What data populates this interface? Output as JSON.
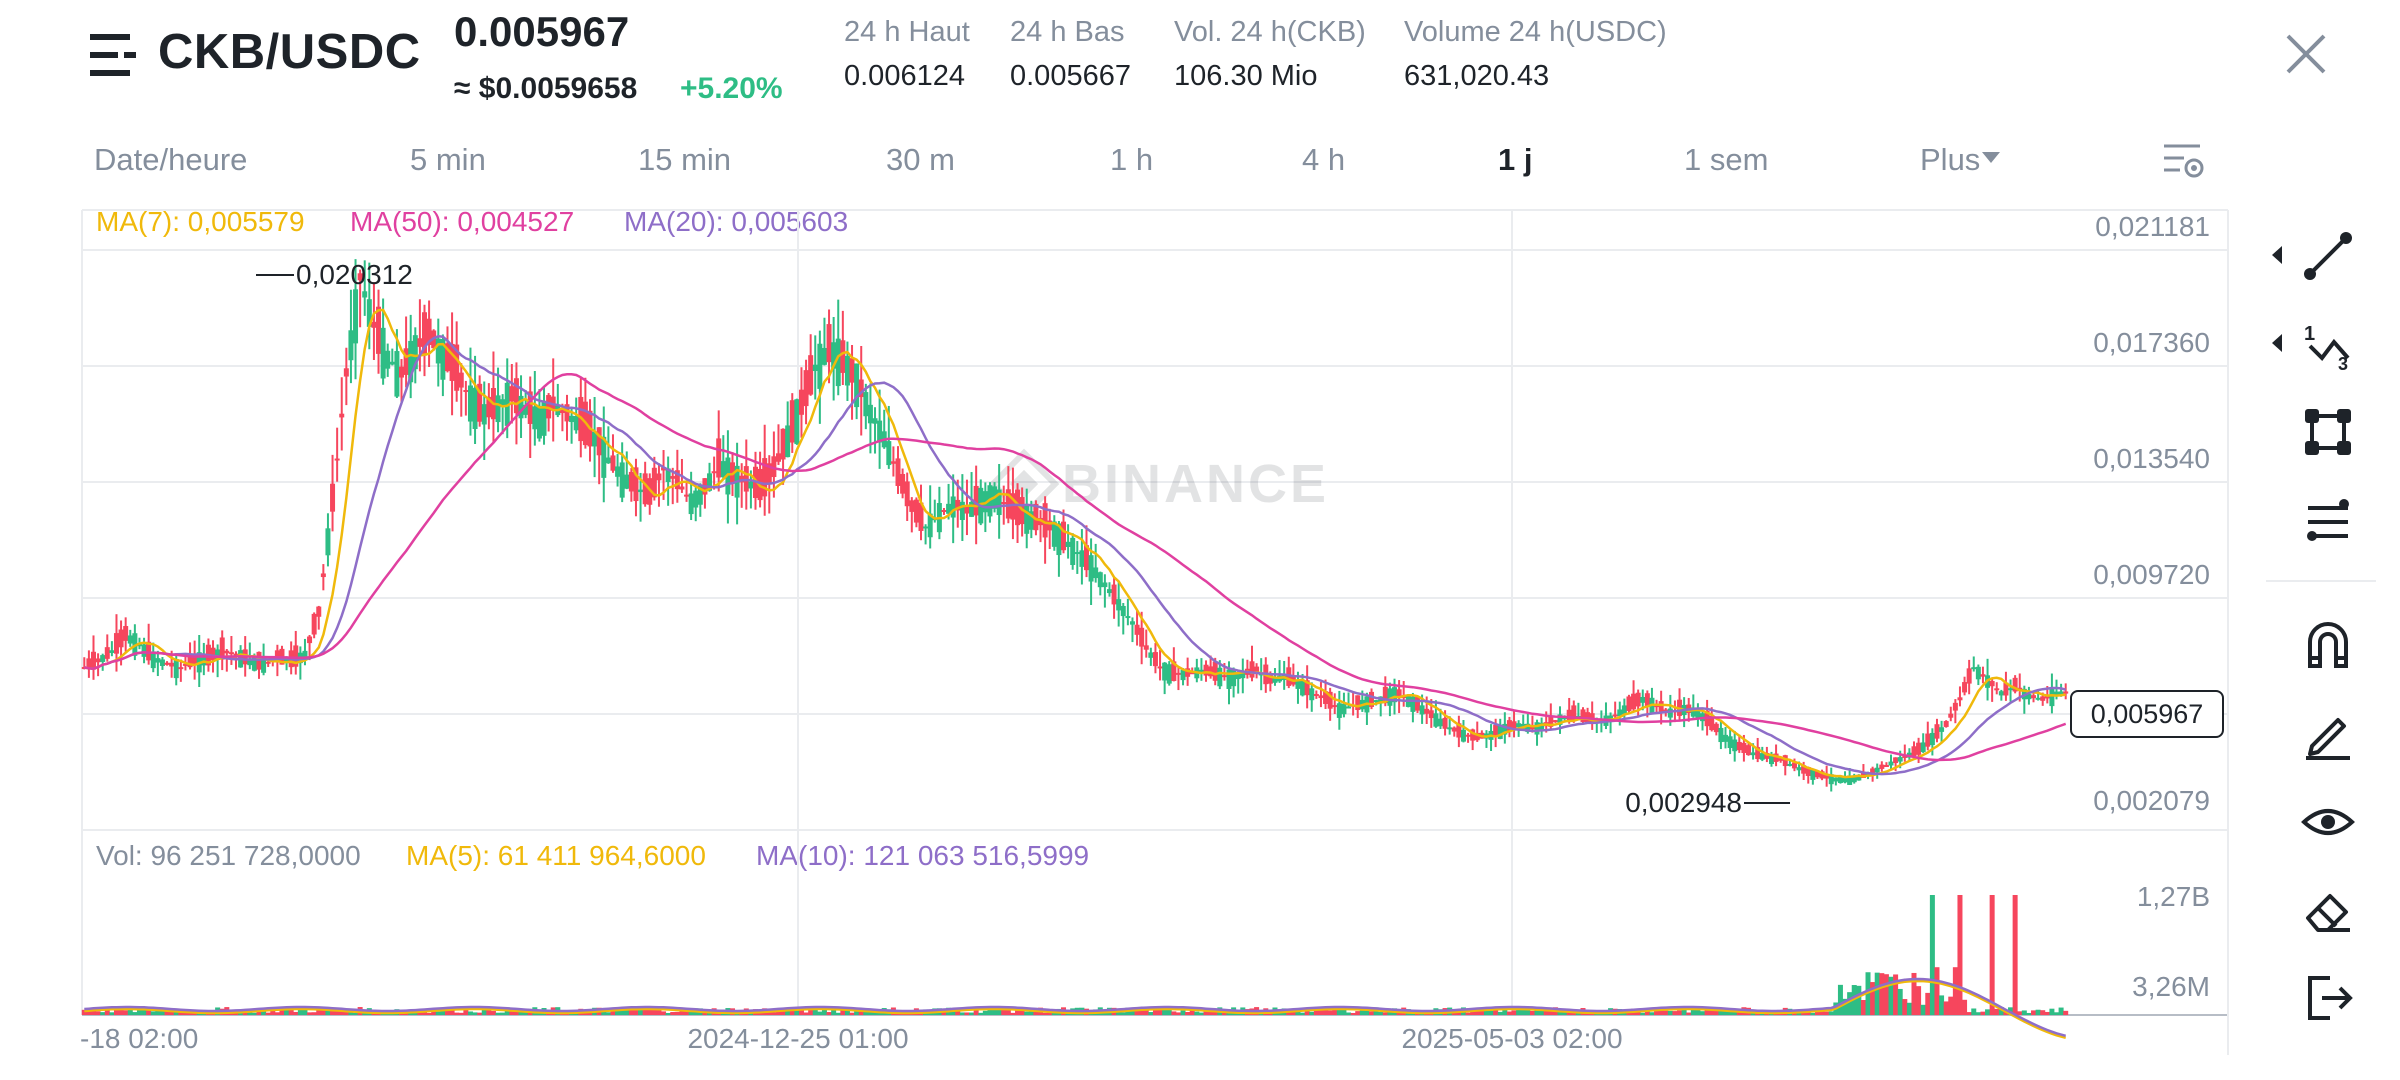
{
  "header": {
    "pair": "CKB/USDC",
    "price": "0.005967",
    "usd_price": "≈ $0.0059658",
    "change": "+5.20%",
    "stats": [
      {
        "label": "24 h Haut",
        "value": "0.006124"
      },
      {
        "label": "24 h Bas",
        "value": "0.005667"
      },
      {
        "label": "Vol. 24 h(CKB)",
        "value": "106.30 Mio"
      },
      {
        "label": "Volume 24 h(USDC)",
        "value": "631,020.43"
      }
    ]
  },
  "tabs": [
    "Date/heure",
    "5 min",
    "15 min",
    "30 m",
    "1 h",
    "4 h",
    "1 j",
    "1 sem",
    "Plus"
  ],
  "active_tab": "1 j",
  "price_legend": [
    {
      "label": "MA(7): 0,005579",
      "color": "#f0b90b"
    },
    {
      "label": "MA(50): 0,004527",
      "color": "#e040a0"
    },
    {
      "label": "MA(20): 0,005603",
      "color": "#8e6ec8"
    }
  ],
  "volume_legend": [
    {
      "label": "Vol: 96 251 728,0000",
      "color": "#848e9c"
    },
    {
      "label": "MA(5): 61 411 964,6000",
      "color": "#f0b90b"
    },
    {
      "label": "MA(10): 121 063 516,5999",
      "color": "#8e6ec8"
    }
  ],
  "watermark": "BINANCE",
  "current_price_tag": "0,005967",
  "colors": {
    "up": "#2ebd85",
    "down": "#f6465d",
    "ma7": "#f0b90b",
    "ma20": "#8e6ec8",
    "ma50": "#e040a0",
    "grid": "#eaecef",
    "axis_text": "#848e9c"
  },
  "chart_data": {
    "type": "candlestick",
    "price_axis_ticks": [
      "0,021181",
      "0,017360",
      "0,013540",
      "0,009720",
      "0,002079"
    ],
    "volume_axis_ticks": [
      "1,27B",
      "3,26M"
    ],
    "time_axis_ticks": [
      "-18 02:00",
      "2024-12-25 01:00",
      "2025-05-03 02:00"
    ],
    "annotations": {
      "high": "0,020312",
      "low": "0,002948"
    },
    "ylim": [
      0.002079,
      0.021181
    ],
    "close_series": [
      0.0068,
      0.007,
      0.0073,
      0.0078,
      0.0075,
      0.0071,
      0.0069,
      0.0068,
      0.007,
      0.0071,
      0.0073,
      0.0072,
      0.007,
      0.0069,
      0.0071,
      0.007,
      0.0072,
      0.0085,
      0.012,
      0.016,
      0.019,
      0.0175,
      0.0165,
      0.016,
      0.0168,
      0.0172,
      0.0166,
      0.016,
      0.0152,
      0.0148,
      0.015,
      0.0153,
      0.0149,
      0.0146,
      0.015,
      0.0147,
      0.0144,
      0.014,
      0.0133,
      0.0128,
      0.0124,
      0.0122,
      0.013,
      0.0126,
      0.012,
      0.0124,
      0.0132,
      0.0128,
      0.0126,
      0.0124,
      0.013,
      0.014,
      0.015,
      0.0162,
      0.0168,
      0.0164,
      0.0158,
      0.0148,
      0.014,
      0.0128,
      0.0118,
      0.0112,
      0.0116,
      0.0119,
      0.0117,
      0.012,
      0.0122,
      0.0118,
      0.0116,
      0.0114,
      0.0112,
      0.0108,
      0.0104,
      0.01,
      0.0094,
      0.0088,
      0.0082,
      0.0074,
      0.0068,
      0.0066,
      0.0066,
      0.0067,
      0.0066,
      0.0065,
      0.0066,
      0.0067,
      0.0064,
      0.0065,
      0.0063,
      0.006,
      0.0058,
      0.0055,
      0.0056,
      0.0057,
      0.0058,
      0.006,
      0.0058,
      0.0055,
      0.0052,
      0.0049,
      0.0047,
      0.0046,
      0.0047,
      0.0049,
      0.005,
      0.0049,
      0.005,
      0.0052,
      0.0053,
      0.0052,
      0.0051,
      0.0053,
      0.0056,
      0.0058,
      0.0056,
      0.0054,
      0.0055,
      0.0054,
      0.005,
      0.0046,
      0.0043,
      0.0041,
      0.004,
      0.0039,
      0.0037,
      0.0035,
      0.0034,
      0.0033,
      0.0033,
      0.0034,
      0.0036,
      0.0038,
      0.004,
      0.0042,
      0.0046,
      0.005,
      0.0058,
      0.0068,
      0.0064,
      0.006,
      0.0062,
      0.0059,
      0.0058,
      0.006
    ]
  }
}
